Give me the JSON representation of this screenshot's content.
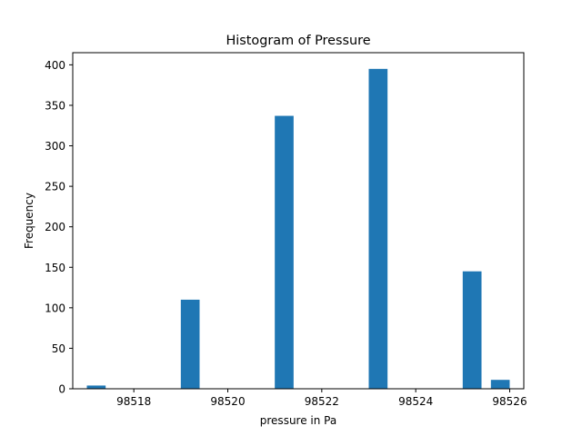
{
  "chart_data": {
    "type": "bar",
    "title": "Histogram of Pressure",
    "xlabel": "pressure in Pa",
    "ylabel": "Frequency",
    "bin_width": 0.4,
    "bins": [
      {
        "x_start": 98517.0,
        "x_end": 98517.4,
        "value": 4
      },
      {
        "x_start": 98519.0,
        "x_end": 98519.4,
        "value": 110
      },
      {
        "x_start": 98521.0,
        "x_end": 98521.4,
        "value": 337
      },
      {
        "x_start": 98523.0,
        "x_end": 98523.4,
        "value": 395
      },
      {
        "x_start": 98525.0,
        "x_end": 98525.4,
        "value": 145
      },
      {
        "x_start": 98525.6,
        "x_end": 98526.0,
        "value": 11
      }
    ],
    "xlim": [
      98516.7,
      98526.3
    ],
    "ylim": [
      0,
      415
    ],
    "xticks": [
      98518,
      98520,
      98522,
      98524,
      98526
    ],
    "yticks": [
      0,
      50,
      100,
      150,
      200,
      250,
      300,
      350,
      400
    ],
    "bar_color": "#1f77b4",
    "grid": false,
    "legend": "none"
  }
}
